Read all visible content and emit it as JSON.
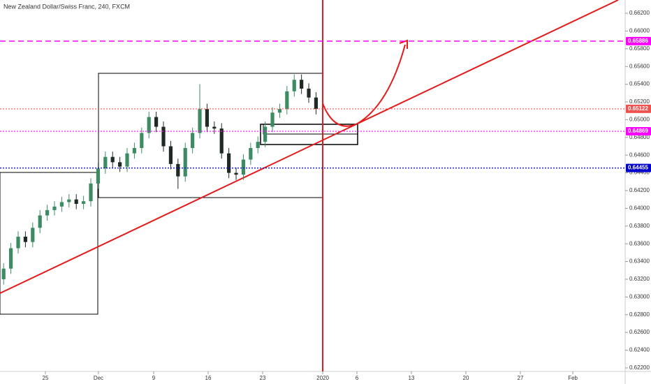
{
  "chart_data": {
    "type": "candlestick",
    "title": "New Zealand Dollar/Swiss Franc, 240, FXCM",
    "x": [
      2,
      6,
      10,
      14,
      18,
      22,
      26,
      30,
      34,
      38,
      42,
      46,
      50,
      54,
      58,
      62,
      66,
      70,
      74,
      78,
      82,
      86,
      90,
      94,
      98,
      102,
      106,
      110,
      114,
      118,
      122,
      126,
      130,
      134,
      138,
      142,
      146,
      150,
      154,
      158,
      162,
      166,
      170,
      174
    ],
    "open": [
      0.632,
      0.6332,
      0.6355,
      0.6368,
      0.6362,
      0.6378,
      0.6392,
      0.6398,
      0.6402,
      0.6407,
      0.641,
      0.6405,
      0.6408,
      0.6428,
      0.6445,
      0.6458,
      0.6452,
      0.6447,
      0.6462,
      0.6468,
      0.6485,
      0.6503,
      0.6492,
      0.647,
      0.645,
      0.6436,
      0.6468,
      0.6485,
      0.6512,
      0.6492,
      0.649,
      0.6462,
      0.644,
      0.6438,
      0.6455,
      0.6468,
      0.6475,
      0.6492,
      0.6508,
      0.6512,
      0.6532,
      0.6545,
      0.6535,
      0.6525
    ],
    "high": [
      0.6338,
      0.6361,
      0.6374,
      0.6374,
      0.6384,
      0.6398,
      0.6404,
      0.6408,
      0.6413,
      0.6416,
      0.6416,
      0.6414,
      0.6434,
      0.6451,
      0.6464,
      0.6464,
      0.6458,
      0.6468,
      0.6474,
      0.6491,
      0.6509,
      0.6509,
      0.6498,
      0.6476,
      0.6456,
      0.6474,
      0.6491,
      0.654,
      0.6518,
      0.6498,
      0.6496,
      0.6468,
      0.6446,
      0.6461,
      0.6474,
      0.6481,
      0.6498,
      0.6514,
      0.6518,
      0.6538,
      0.6551,
      0.6551,
      0.6541,
      0.6531
    ],
    "low": [
      0.6314,
      0.6326,
      0.6349,
      0.6356,
      0.6356,
      0.6372,
      0.6386,
      0.6392,
      0.6396,
      0.6401,
      0.6399,
      0.6399,
      0.6402,
      0.6422,
      0.6439,
      0.6446,
      0.6441,
      0.6441,
      0.6456,
      0.6462,
      0.6479,
      0.6486,
      0.6464,
      0.6444,
      0.6422,
      0.643,
      0.6462,
      0.6479,
      0.6486,
      0.6484,
      0.6456,
      0.6434,
      0.6432,
      0.6432,
      0.6449,
      0.6462,
      0.6469,
      0.6486,
      0.6502,
      0.6506,
      0.6526,
      0.6529,
      0.6519,
      0.6506
    ],
    "close": [
      0.6332,
      0.6355,
      0.6368,
      0.6362,
      0.6378,
      0.6392,
      0.6398,
      0.6402,
      0.6407,
      0.641,
      0.6405,
      0.6408,
      0.6428,
      0.6445,
      0.6458,
      0.6452,
      0.6447,
      0.6462,
      0.6468,
      0.6485,
      0.6503,
      0.6492,
      0.647,
      0.645,
      0.6436,
      0.6468,
      0.6485,
      0.6512,
      0.6492,
      0.649,
      0.6462,
      0.644,
      0.6438,
      0.6455,
      0.6468,
      0.6475,
      0.6492,
      0.6508,
      0.6512,
      0.6532,
      0.6545,
      0.6535,
      0.6525,
      0.6512
    ],
    "up_color": "#3d8b63",
    "down_color": "#1f2a24",
    "xlim": [
      0,
      344.2
    ],
    "ylim": [
      0.6216,
      0.6635
    ],
    "xticks": [
      {
        "value": 25,
        "label": "25"
      },
      {
        "value": 54.2,
        "label": "Dec"
      },
      {
        "value": 84.6,
        "label": "9"
      },
      {
        "value": 114.6,
        "label": "16"
      },
      {
        "value": 144.6,
        "label": "23"
      },
      {
        "value": 177.7,
        "label": "2020"
      },
      {
        "value": 196.5,
        "label": "6"
      },
      {
        "value": 226.5,
        "label": "13"
      },
      {
        "value": 256.5,
        "label": "20"
      },
      {
        "value": 286.5,
        "label": "27"
      },
      {
        "value": 315.4,
        "label": "Feb"
      }
    ],
    "yticks": [
      {
        "value": 0.622,
        "label": "0.62200"
      },
      {
        "value": 0.624,
        "label": "0.62400"
      },
      {
        "value": 0.626,
        "label": "0.62600"
      },
      {
        "value": 0.628,
        "label": "0.62800"
      },
      {
        "value": 0.63,
        "label": "0.63000"
      },
      {
        "value": 0.632,
        "label": "0.63200"
      },
      {
        "value": 0.634,
        "label": "0.63400"
      },
      {
        "value": 0.636,
        "label": "0.63600"
      },
      {
        "value": 0.638,
        "label": "0.63800"
      },
      {
        "value": 0.64,
        "label": "0.64000"
      },
      {
        "value": 0.642,
        "label": "0.64200"
      },
      {
        "value": 0.644,
        "label": "0.64400"
      },
      {
        "value": 0.646,
        "label": "0.64600"
      },
      {
        "value": 0.648,
        "label": "0.64800"
      },
      {
        "value": 0.65,
        "label": "0.65000"
      },
      {
        "value": 0.652,
        "label": "0.65200"
      },
      {
        "value": 0.654,
        "label": "0.65400"
      },
      {
        "value": 0.656,
        "label": "0.65600"
      },
      {
        "value": 0.658,
        "label": "0.65800"
      },
      {
        "value": 0.66,
        "label": "0.66000"
      },
      {
        "value": 0.662,
        "label": "0.66200"
      }
    ],
    "price_lines": [
      {
        "value": 0.65886,
        "color": "#ff00ff",
        "style": "dashed"
      },
      {
        "value": 0.65122,
        "color": "#ef5350",
        "style": "dotted"
      },
      {
        "value": 0.64869,
        "color": "#ff00ff",
        "style": "dotted"
      },
      {
        "value": 0.64455,
        "color": "#0000cc",
        "style": "dotted"
      }
    ]
  }
}
